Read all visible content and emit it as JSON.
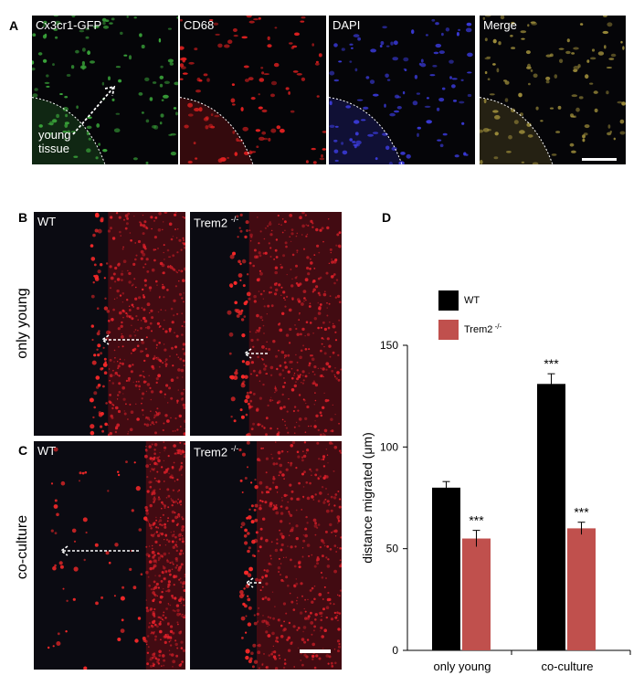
{
  "panels": {
    "A": {
      "letter": "A",
      "images": [
        {
          "label": "Cx3cr1-GFP",
          "color": "#3aa53a"
        },
        {
          "label": "CD68",
          "color": "#e02020"
        },
        {
          "label": "DAPI",
          "color": "#3a3ad8"
        },
        {
          "label": "Merge",
          "color": "#9a8a3a"
        }
      ],
      "young_tissue_label_line1": "young",
      "young_tissue_label_line2": "tissue"
    },
    "B": {
      "letter": "B",
      "row_label": "only young",
      "wt_label": "WT",
      "trem_label": "Trem2",
      "trem_sup": "-/-"
    },
    "C": {
      "letter": "C",
      "row_label": "co-culture",
      "wt_label": "WT",
      "trem_label": "Trem2",
      "trem_sup": "-/-"
    },
    "D": {
      "letter": "D"
    }
  },
  "chart_data": {
    "type": "bar",
    "categories": [
      "only young",
      "co-culture"
    ],
    "series": [
      {
        "name": "WT",
        "values": [
          80,
          131
        ],
        "errors": [
          3,
          5
        ],
        "color": "#000000",
        "sig": [
          "",
          "***"
        ]
      },
      {
        "name": "Trem2 -/-",
        "values": [
          55,
          60
        ],
        "errors": [
          4,
          3
        ],
        "color": "#c0504d",
        "sig": [
          "***",
          "***"
        ]
      }
    ],
    "ylabel": "distance migrated (μm)",
    "ylim": [
      0,
      150
    ],
    "yticks": [
      0,
      50,
      100,
      150
    ],
    "legend": [
      {
        "label": "WT",
        "sup": "",
        "color": "#000000"
      },
      {
        "label": "Trem2",
        "sup": "-/-",
        "color": "#c0504d"
      }
    ]
  }
}
